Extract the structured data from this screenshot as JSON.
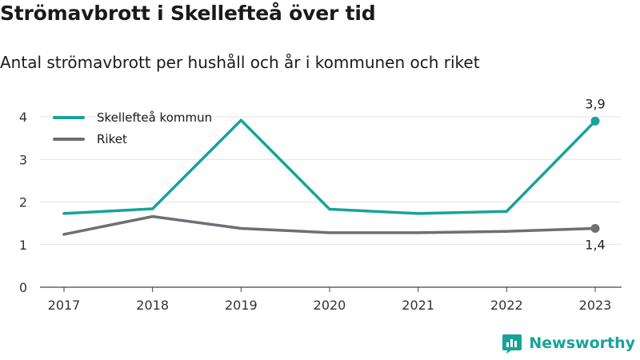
{
  "title": "Strömavbrott i Skellefteå över tid",
  "subtitle": "Antal strömavbrott per hushåll och år i kommunen och riket",
  "brand": "Newsworthy",
  "chart_data": {
    "type": "line",
    "title": "Strömavbrott i Skellefteå över tid",
    "subtitle": "Antal strömavbrott per hushåll och år i kommunen och riket",
    "x": [
      "2017",
      "2018",
      "2019",
      "2020",
      "2021",
      "2022",
      "2023"
    ],
    "ylim": [
      0,
      4
    ],
    "yticks": [
      "0",
      "1",
      "2",
      "3",
      "4"
    ],
    "grid": true,
    "legend_position": "top-left",
    "series": [
      {
        "name": "Skellefteå kommun",
        "color": "#17a398",
        "values": [
          1.73,
          1.84,
          3.92,
          1.83,
          1.73,
          1.78,
          3.9
        ],
        "end_label": "3,9"
      },
      {
        "name": "Riket",
        "color": "#6f6e74",
        "values": [
          1.24,
          1.66,
          1.38,
          1.28,
          1.28,
          1.31,
          1.38
        ],
        "end_label": "1,4"
      }
    ]
  }
}
